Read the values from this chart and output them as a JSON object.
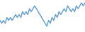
{
  "values": [
    4,
    3,
    4,
    3,
    5,
    4,
    5,
    4,
    5,
    6,
    5,
    6,
    5,
    7,
    6,
    7,
    6,
    8,
    7,
    8,
    9,
    8,
    7,
    6,
    5,
    4,
    3,
    2,
    4,
    3,
    5,
    4,
    6,
    5,
    7,
    6,
    7,
    8,
    7,
    9,
    8,
    7,
    8,
    7,
    9,
    8,
    9,
    10,
    9,
    10
  ],
  "line_color": "#5b9bd5",
  "background_color": "#ffffff",
  "ylim_min": 0,
  "ylim_max": 11,
  "linewidth": 1.0
}
